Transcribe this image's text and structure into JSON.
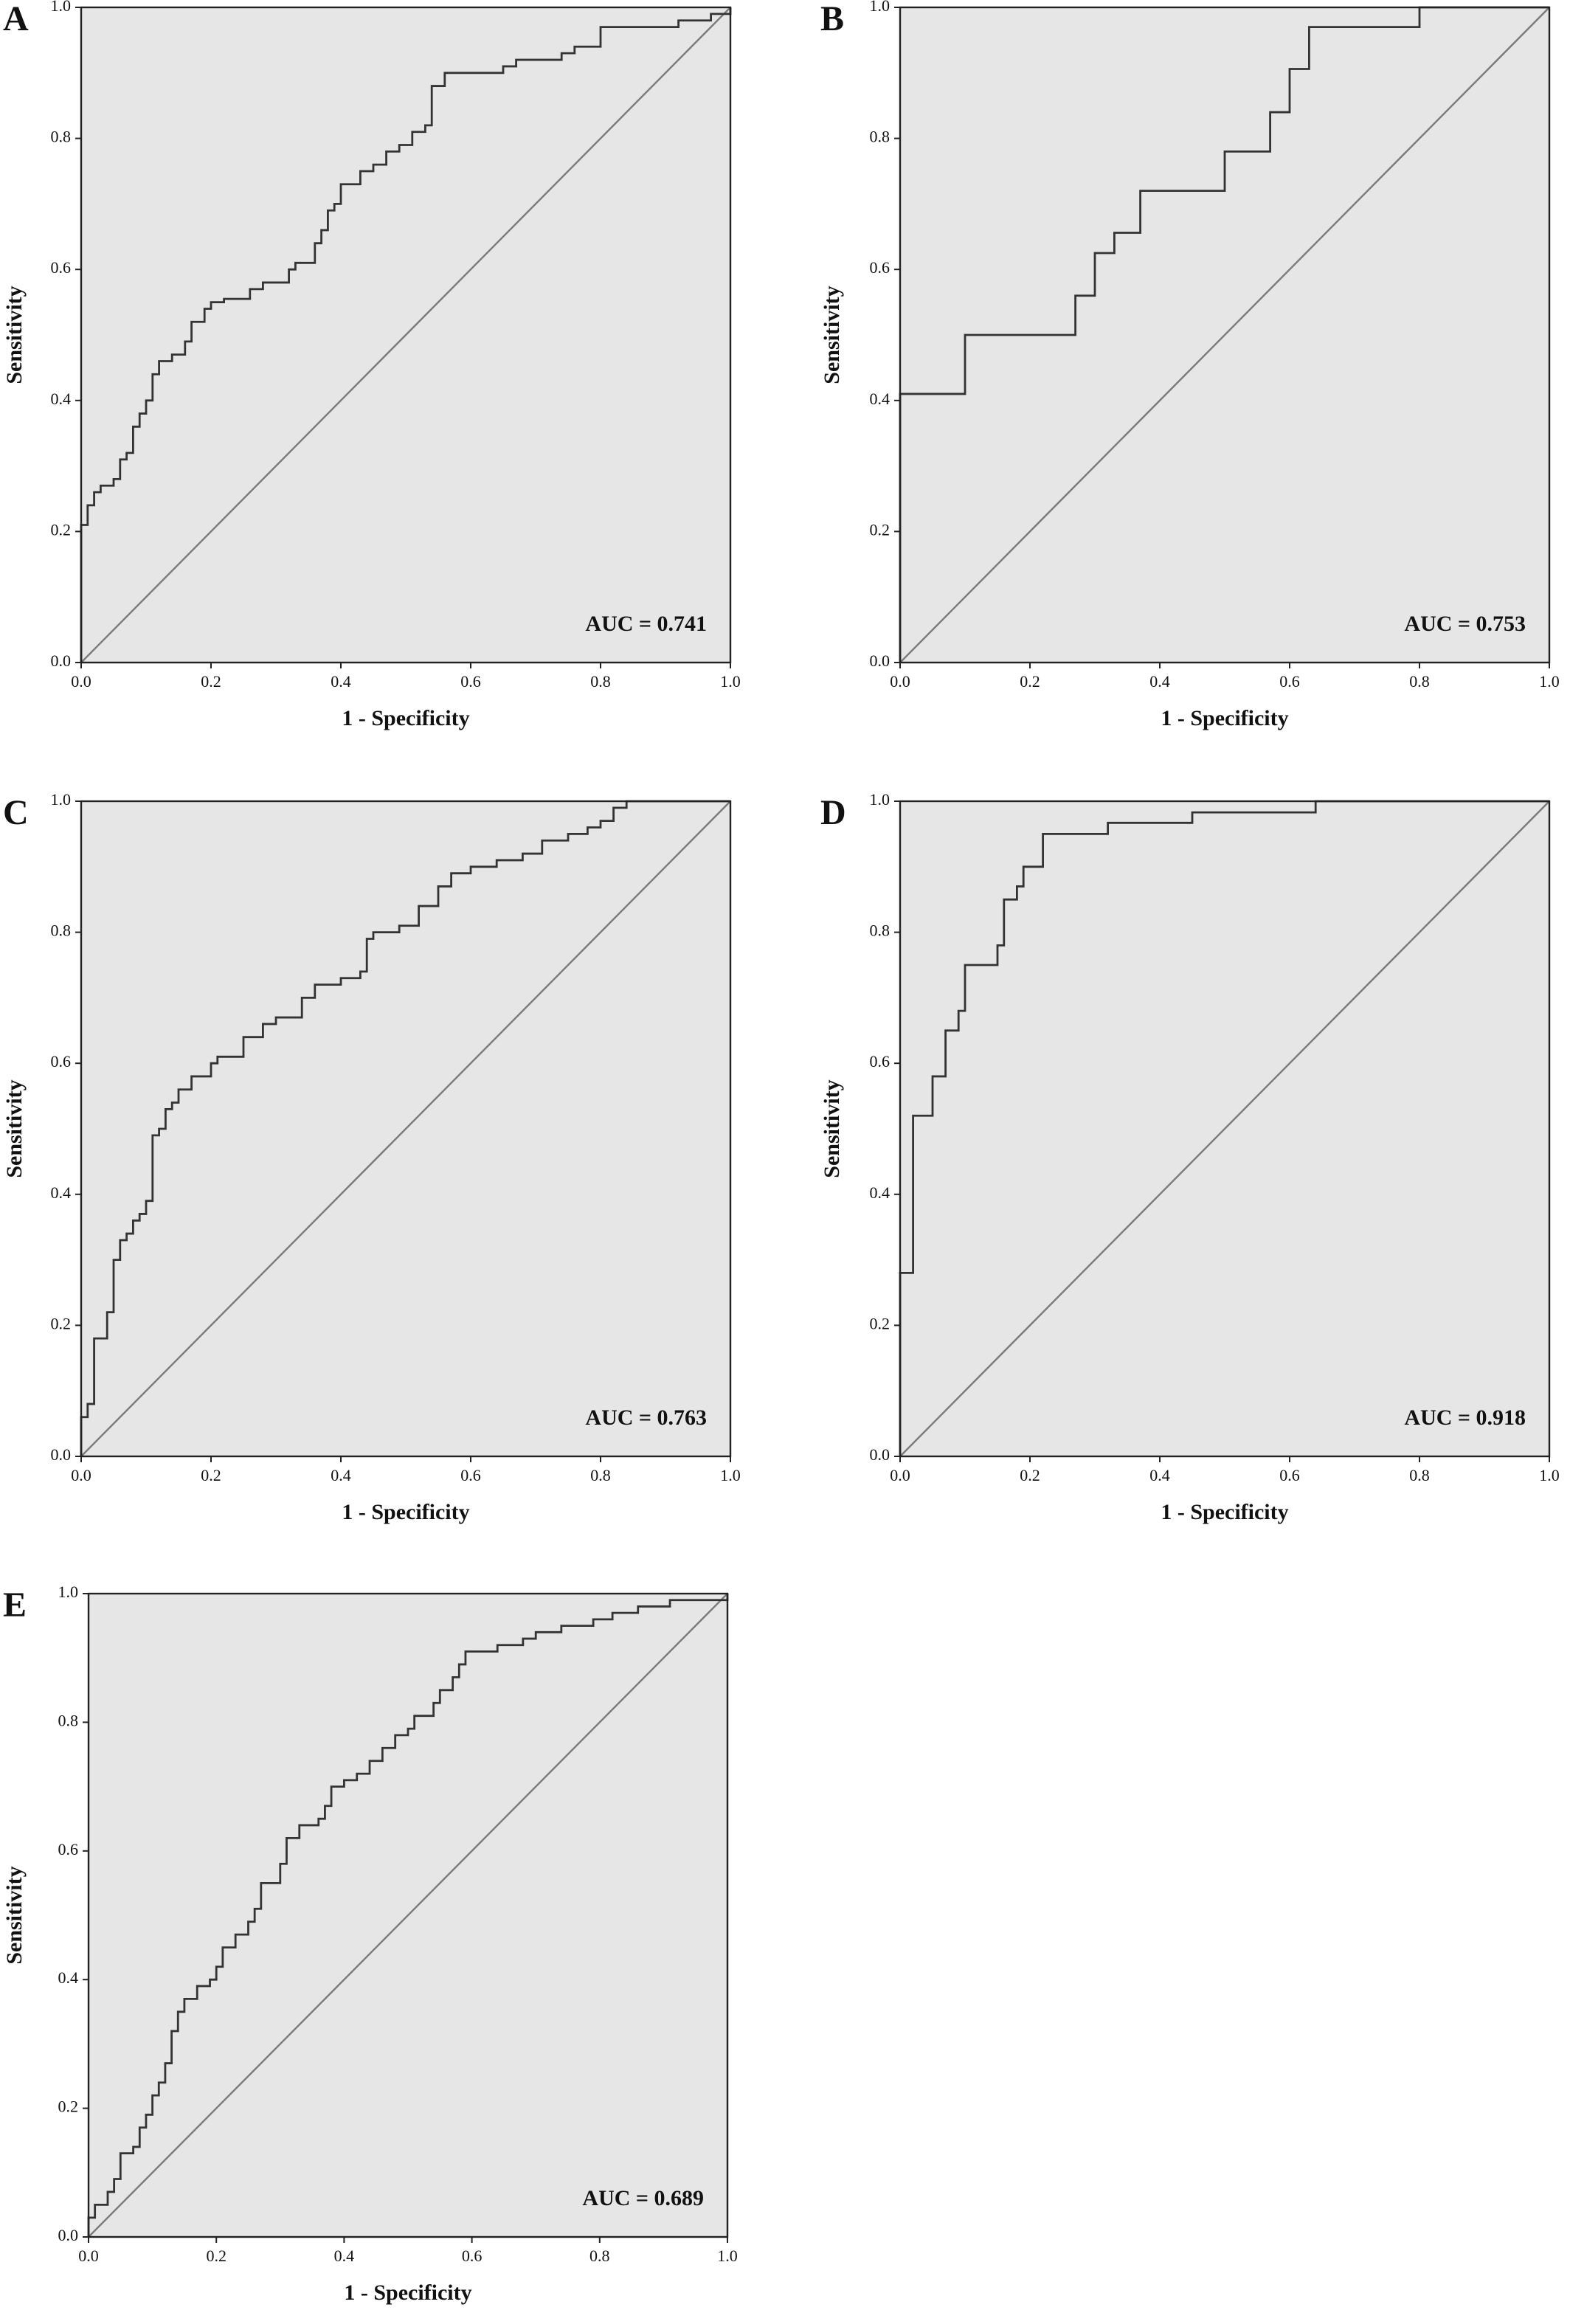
{
  "chart_data": [
    {
      "type": "line",
      "panel": "A",
      "xlabel": "1 - Specificity",
      "ylabel": "Sensitivity",
      "annotation": "AUC = 0.741",
      "color": "#333333",
      "xlim": [
        0,
        1
      ],
      "ylim": [
        0,
        1
      ],
      "xticks": [
        {
          "value": 0,
          "label": "0.0"
        },
        0.2,
        0.4,
        0.6,
        0.8,
        {
          "value": 1,
          "label": "1.0"
        }
      ],
      "yticks": [
        {
          "value": 0,
          "label": "0.0"
        },
        0.2,
        0.4,
        0.6,
        0.8,
        {
          "value": 1,
          "label": "1.0"
        }
      ],
      "x": [
        0,
        0,
        0.01,
        0.01,
        0.02,
        0.02,
        0.03,
        0.03,
        0.05,
        0.05,
        0.06,
        0.06,
        0.07,
        0.07,
        0.08,
        0.08,
        0.09,
        0.09,
        0.1,
        0.1,
        0.11,
        0.11,
        0.12,
        0.12,
        0.14,
        0.14,
        0.16,
        0.16,
        0.17,
        0.17,
        0.19,
        0.19,
        0.2,
        0.2,
        0.22,
        0.22,
        0.26,
        0.26,
        0.28,
        0.28,
        0.32,
        0.32,
        0.33,
        0.33,
        0.36,
        0.36,
        0.37,
        0.37,
        0.38,
        0.38,
        0.39,
        0.39,
        0.4,
        0.4,
        0.43,
        0.43,
        0.45,
        0.45,
        0.47,
        0.47,
        0.49,
        0.49,
        0.51,
        0.51,
        0.53,
        0.53,
        0.54,
        0.54,
        0.56,
        0.56,
        0.65,
        0.65,
        0.67,
        0.67,
        0.74,
        0.74,
        0.76,
        0.76,
        0.8,
        0.8,
        0.92,
        0.92,
        0.97,
        0.97,
        1,
        1
      ],
      "values": [
        0,
        0.21,
        0.21,
        0.24,
        0.24,
        0.26,
        0.26,
        0.27,
        0.27,
        0.28,
        0.28,
        0.31,
        0.31,
        0.32,
        0.32,
        0.36,
        0.36,
        0.38,
        0.38,
        0.4,
        0.4,
        0.44,
        0.44,
        0.46,
        0.46,
        0.47,
        0.47,
        0.49,
        0.49,
        0.52,
        0.52,
        0.54,
        0.54,
        0.55,
        0.55,
        0.555,
        0.555,
        0.57,
        0.57,
        0.58,
        0.58,
        0.6,
        0.6,
        0.61,
        0.61,
        0.64,
        0.64,
        0.66,
        0.66,
        0.69,
        0.69,
        0.7,
        0.7,
        0.73,
        0.73,
        0.75,
        0.75,
        0.76,
        0.76,
        0.78,
        0.78,
        0.79,
        0.79,
        0.81,
        0.81,
        0.82,
        0.82,
        0.88,
        0.88,
        0.9,
        0.9,
        0.91,
        0.91,
        0.92,
        0.92,
        0.93,
        0.93,
        0.94,
        0.94,
        0.97,
        0.97,
        0.98,
        0.98,
        0.99,
        0.99,
        1
      ]
    },
    {
      "type": "line",
      "panel": "B",
      "xlabel": "1 - Specificity",
      "ylabel": "Sensitivity",
      "annotation": "AUC = 0.753",
      "color": "#333333",
      "xlim": [
        0,
        1
      ],
      "ylim": [
        0,
        1
      ],
      "xticks": [
        {
          "value": 0,
          "label": "0.0"
        },
        0.2,
        0.4,
        0.6,
        0.8,
        {
          "value": 1,
          "label": "1.0"
        }
      ],
      "yticks": [
        {
          "value": 0,
          "label": "0.0"
        },
        0.2,
        0.4,
        0.6,
        0.8,
        {
          "value": 1,
          "label": "1.0"
        }
      ],
      "x": [
        0,
        0,
        0.1,
        0.1,
        0.27,
        0.27,
        0.3,
        0.3,
        0.33,
        0.33,
        0.37,
        0.37,
        0.5,
        0.5,
        0.57,
        0.57,
        0.6,
        0.6,
        0.63,
        0.63,
        0.8,
        0.8,
        1
      ],
      "values": [
        0,
        0.41,
        0.41,
        0.5,
        0.5,
        0.56,
        0.56,
        0.625,
        0.625,
        0.656,
        0.656,
        0.72,
        0.72,
        0.78,
        0.78,
        0.84,
        0.84,
        0.906,
        0.906,
        0.97,
        0.97,
        1,
        1
      ]
    },
    {
      "type": "line",
      "panel": "C",
      "xlabel": "1 - Specificity",
      "ylabel": "Sensitivity",
      "annotation": "AUC = 0.763",
      "color": "#333333",
      "xlim": [
        0,
        1
      ],
      "ylim": [
        0,
        1
      ],
      "xticks": [
        {
          "value": 0,
          "label": "0.0"
        },
        0.2,
        0.4,
        0.6,
        0.8,
        {
          "value": 1,
          "label": "1.0"
        }
      ],
      "yticks": [
        {
          "value": 0,
          "label": "0.0"
        },
        0.2,
        0.4,
        0.6,
        0.8,
        {
          "value": 1,
          "label": "1.0"
        }
      ],
      "x": [
        0,
        0,
        0.01,
        0.01,
        0.02,
        0.02,
        0.04,
        0.04,
        0.05,
        0.05,
        0.06,
        0.06,
        0.07,
        0.07,
        0.08,
        0.08,
        0.09,
        0.09,
        0.1,
        0.1,
        0.11,
        0.11,
        0.12,
        0.12,
        0.13,
        0.13,
        0.14,
        0.14,
        0.15,
        0.15,
        0.17,
        0.17,
        0.2,
        0.2,
        0.21,
        0.21,
        0.25,
        0.25,
        0.28,
        0.28,
        0.3,
        0.3,
        0.34,
        0.34,
        0.36,
        0.36,
        0.4,
        0.4,
        0.43,
        0.43,
        0.44,
        0.44,
        0.45,
        0.45,
        0.49,
        0.49,
        0.52,
        0.52,
        0.55,
        0.55,
        0.57,
        0.57,
        0.6,
        0.6,
        0.64,
        0.64,
        0.68,
        0.68,
        0.71,
        0.71,
        0.75,
        0.75,
        0.78,
        0.78,
        0.8,
        0.8,
        0.82,
        0.82,
        0.84,
        0.84,
        1
      ],
      "values": [
        0,
        0.06,
        0.06,
        0.08,
        0.08,
        0.18,
        0.18,
        0.22,
        0.22,
        0.3,
        0.3,
        0.33,
        0.33,
        0.34,
        0.34,
        0.36,
        0.36,
        0.37,
        0.37,
        0.39,
        0.39,
        0.49,
        0.49,
        0.5,
        0.5,
        0.53,
        0.53,
        0.54,
        0.54,
        0.56,
        0.56,
        0.58,
        0.58,
        0.6,
        0.6,
        0.61,
        0.61,
        0.64,
        0.64,
        0.66,
        0.66,
        0.67,
        0.67,
        0.7,
        0.7,
        0.72,
        0.72,
        0.73,
        0.73,
        0.74,
        0.74,
        0.79,
        0.79,
        0.8,
        0.8,
        0.81,
        0.81,
        0.84,
        0.84,
        0.87,
        0.87,
        0.89,
        0.89,
        0.9,
        0.9,
        0.91,
        0.91,
        0.92,
        0.92,
        0.94,
        0.94,
        0.95,
        0.95,
        0.96,
        0.96,
        0.97,
        0.97,
        0.99,
        0.99,
        1,
        1
      ]
    },
    {
      "type": "line",
      "panel": "D",
      "xlabel": "1 - Specificity",
      "ylabel": "Sensitivity",
      "annotation": "AUC = 0.918",
      "color": "#333333",
      "xlim": [
        0,
        1
      ],
      "ylim": [
        0,
        1
      ],
      "xticks": [
        {
          "value": 0,
          "label": "0.0"
        },
        0.2,
        0.4,
        0.6,
        0.8,
        {
          "value": 1,
          "label": "1.0"
        }
      ],
      "yticks": [
        {
          "value": 0,
          "label": "0.0"
        },
        0.2,
        0.4,
        0.6,
        0.8,
        {
          "value": 1,
          "label": "1.0"
        }
      ],
      "x": [
        0,
        0,
        0.02,
        0.02,
        0.05,
        0.05,
        0.07,
        0.07,
        0.09,
        0.09,
        0.1,
        0.1,
        0.15,
        0.15,
        0.16,
        0.16,
        0.18,
        0.18,
        0.19,
        0.19,
        0.22,
        0.22,
        0.32,
        0.32,
        0.45,
        0.45,
        0.64,
        0.64,
        1
      ],
      "values": [
        0,
        0.28,
        0.28,
        0.52,
        0.52,
        0.58,
        0.58,
        0.65,
        0.65,
        0.68,
        0.68,
        0.75,
        0.75,
        0.78,
        0.78,
        0.85,
        0.85,
        0.87,
        0.87,
        0.9,
        0.9,
        0.95,
        0.95,
        0.967,
        0.967,
        0.983,
        0.983,
        1,
        1
      ]
    },
    {
      "type": "line",
      "panel": "E",
      "xlabel": "1 - Specificity",
      "ylabel": "Sensitivity",
      "annotation": "AUC = 0.689",
      "color": "#333333",
      "xlim": [
        0,
        1
      ],
      "ylim": [
        0,
        1
      ],
      "xticks": [
        {
          "value": 0,
          "label": "0.0"
        },
        0.2,
        0.4,
        0.6,
        0.8,
        {
          "value": 1,
          "label": "1.0"
        }
      ],
      "yticks": [
        {
          "value": 0,
          "label": "0.0"
        },
        0.2,
        0.4,
        0.6,
        0.8,
        {
          "value": 1,
          "label": "1.0"
        }
      ],
      "x": [
        0,
        0,
        0.01,
        0.01,
        0.03,
        0.03,
        0.04,
        0.04,
        0.05,
        0.05,
        0.07,
        0.07,
        0.08,
        0.08,
        0.09,
        0.09,
        0.1,
        0.1,
        0.11,
        0.11,
        0.12,
        0.12,
        0.13,
        0.13,
        0.14,
        0.14,
        0.15,
        0.15,
        0.17,
        0.17,
        0.19,
        0.19,
        0.2,
        0.2,
        0.21,
        0.21,
        0.23,
        0.23,
        0.25,
        0.25,
        0.26,
        0.26,
        0.27,
        0.27,
        0.3,
        0.3,
        0.31,
        0.31,
        0.33,
        0.33,
        0.36,
        0.36,
        0.37,
        0.37,
        0.38,
        0.38,
        0.4,
        0.4,
        0.42,
        0.42,
        0.44,
        0.44,
        0.46,
        0.46,
        0.48,
        0.48,
        0.5,
        0.5,
        0.51,
        0.51,
        0.54,
        0.54,
        0.55,
        0.55,
        0.57,
        0.57,
        0.58,
        0.58,
        0.59,
        0.59,
        0.64,
        0.64,
        0.68,
        0.68,
        0.7,
        0.7,
        0.74,
        0.74,
        0.79,
        0.79,
        0.82,
        0.82,
        0.86,
        0.86,
        0.91,
        0.91,
        1,
        1
      ],
      "values": [
        0,
        0.03,
        0.03,
        0.05,
        0.05,
        0.07,
        0.07,
        0.09,
        0.09,
        0.13,
        0.13,
        0.14,
        0.14,
        0.17,
        0.17,
        0.19,
        0.19,
        0.22,
        0.22,
        0.24,
        0.24,
        0.27,
        0.27,
        0.32,
        0.32,
        0.35,
        0.35,
        0.37,
        0.37,
        0.39,
        0.39,
        0.4,
        0.4,
        0.42,
        0.42,
        0.45,
        0.45,
        0.47,
        0.47,
        0.49,
        0.49,
        0.51,
        0.51,
        0.55,
        0.55,
        0.58,
        0.58,
        0.62,
        0.62,
        0.64,
        0.64,
        0.65,
        0.65,
        0.67,
        0.67,
        0.7,
        0.7,
        0.71,
        0.71,
        0.72,
        0.72,
        0.74,
        0.74,
        0.76,
        0.76,
        0.78,
        0.78,
        0.79,
        0.79,
        0.81,
        0.81,
        0.83,
        0.83,
        0.85,
        0.85,
        0.87,
        0.87,
        0.89,
        0.89,
        0.91,
        0.91,
        0.92,
        0.92,
        0.93,
        0.93,
        0.94,
        0.94,
        0.95,
        0.95,
        0.96,
        0.96,
        0.97,
        0.97,
        0.98,
        0.98,
        0.99,
        0.99,
        1
      ]
    }
  ]
}
